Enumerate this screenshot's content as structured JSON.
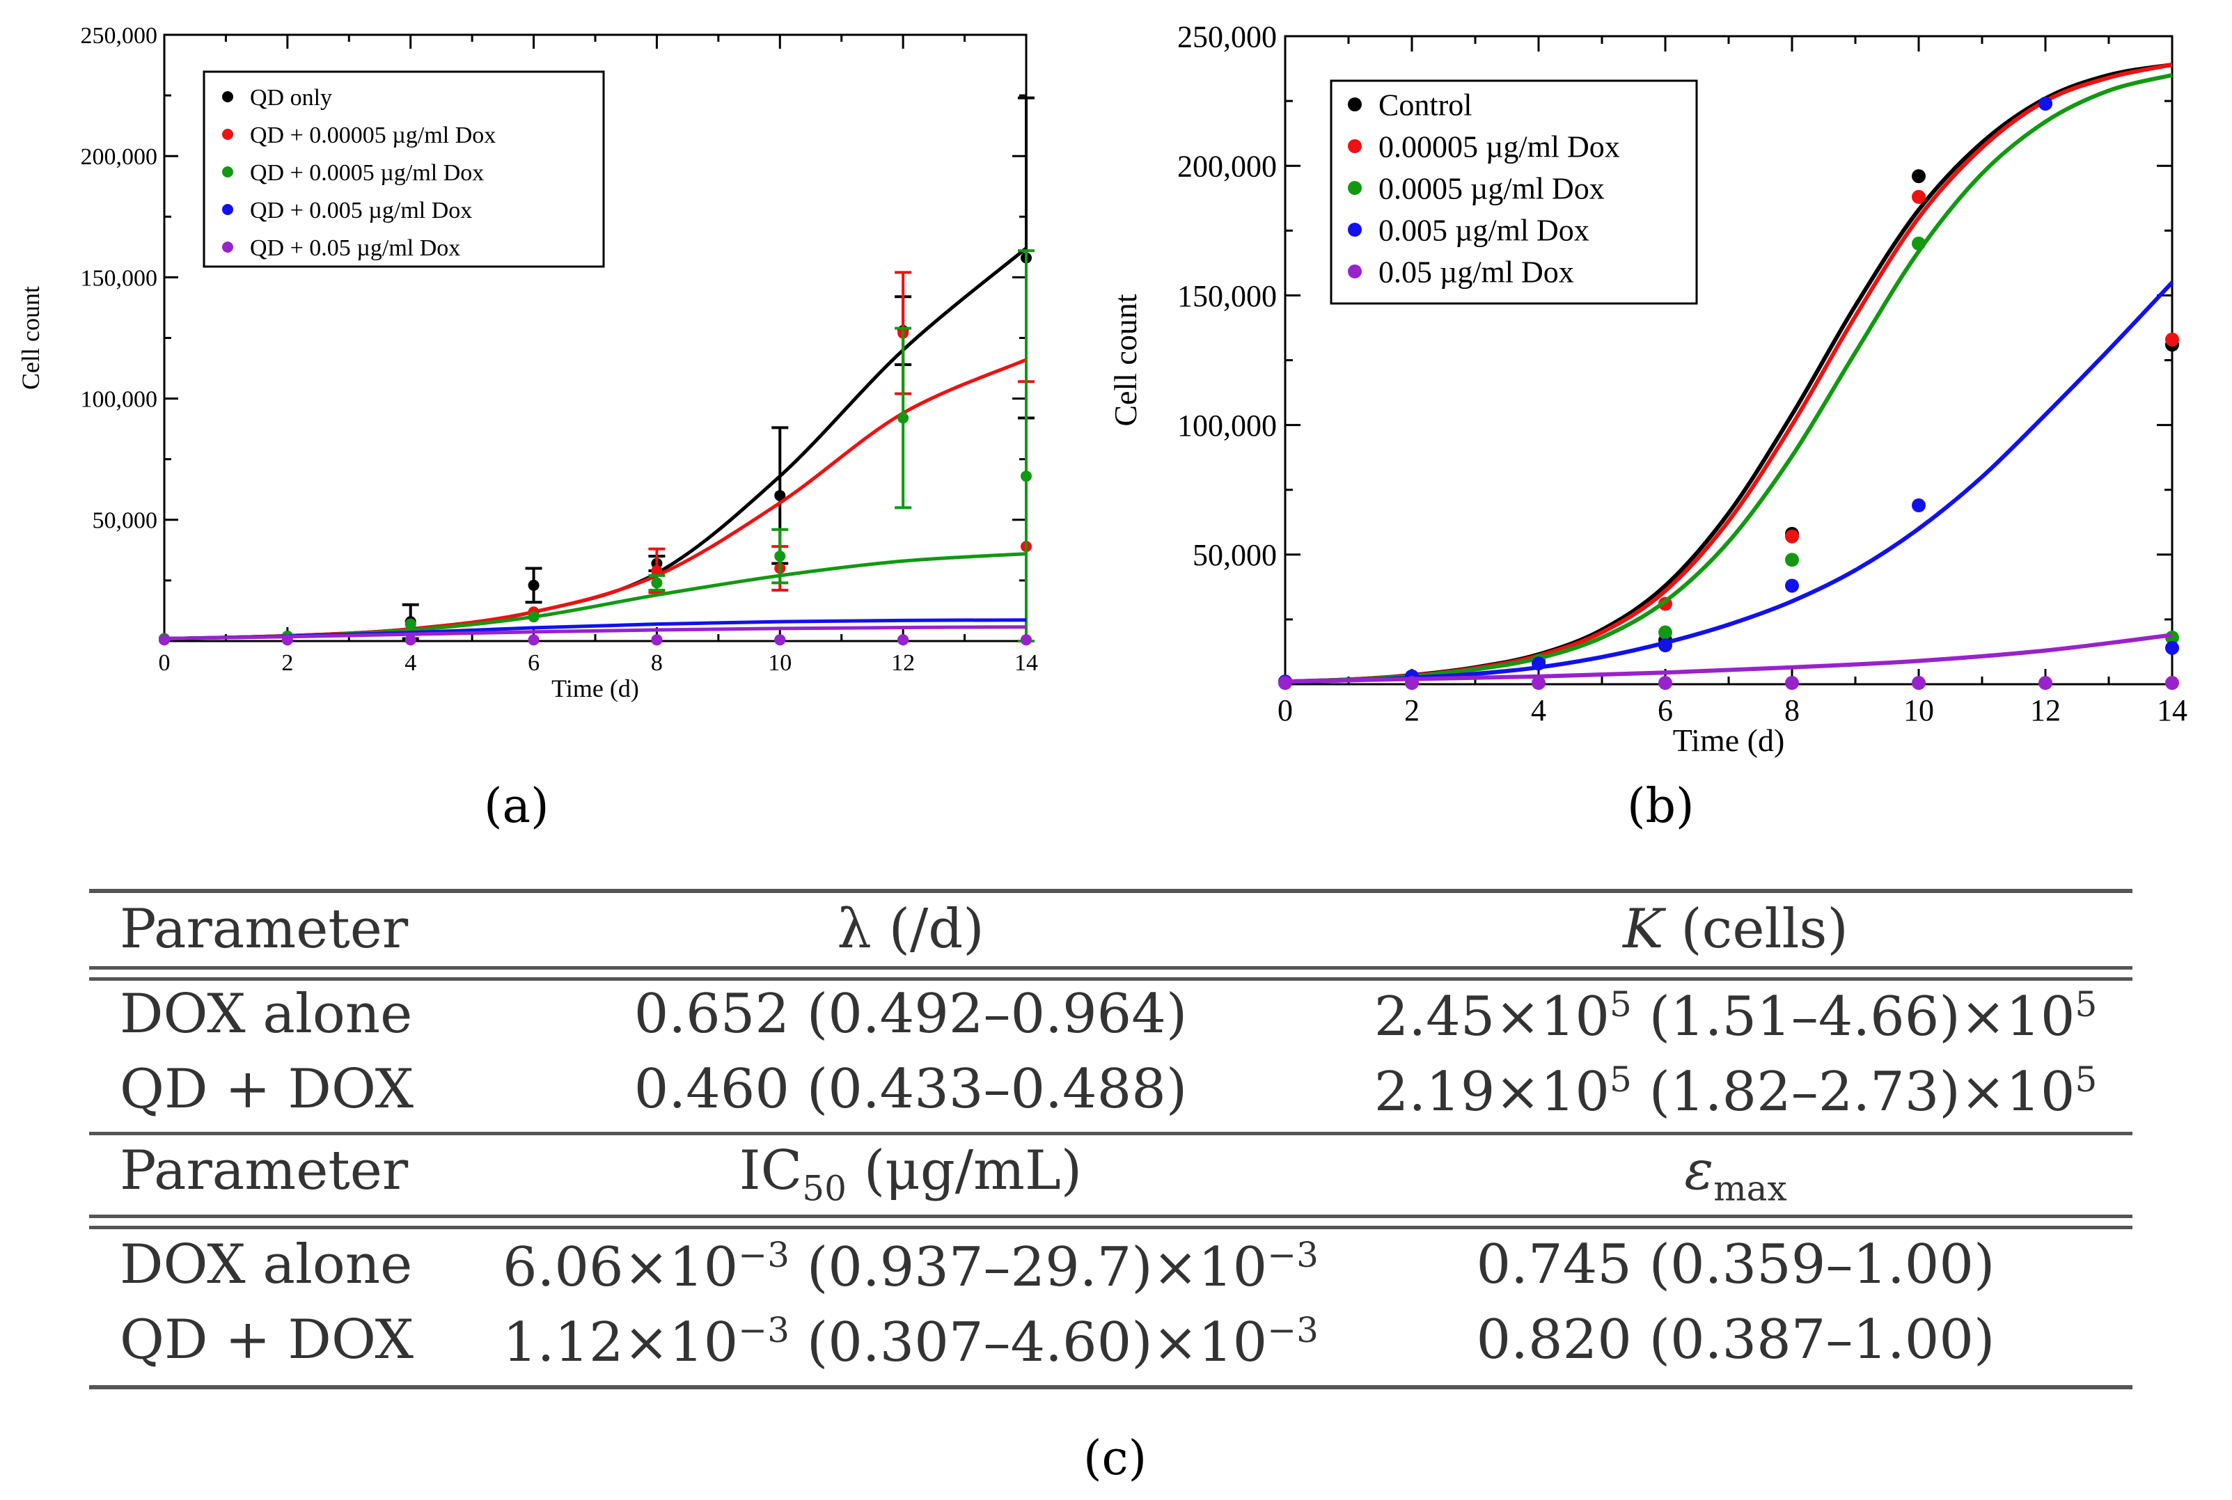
{
  "chart_data": [
    {
      "type": "scatter",
      "panel": "a",
      "xlabel": "Time (d)",
      "ylabel": "Cell count",
      "xlim": [
        0,
        14
      ],
      "ylim": [
        0,
        250000
      ],
      "xticks": [
        "0",
        "2",
        "4",
        "6",
        "8",
        "10",
        "12",
        "14"
      ],
      "yticks": [
        "50,000",
        "100,000",
        "150,000",
        "200,000",
        "250,000"
      ],
      "legend_position": "top-left",
      "series": [
        {
          "name": "QD only",
          "color": "#000000",
          "points": [
            [
              0,
              1000
            ],
            [
              2,
              2000
            ],
            [
              4,
              8000
            ],
            [
              6,
              23000
            ],
            [
              8,
              32000
            ],
            [
              10,
              60000
            ],
            [
              12,
              128000
            ],
            [
              14,
              158000
            ]
          ],
          "errors": [
            [
              4,
              7000
            ],
            [
              6,
              7000
            ],
            [
              8,
              3000
            ],
            [
              10,
              28000
            ],
            [
              12,
              14000
            ],
            [
              14,
              66000
            ]
          ],
          "fit": [
            [
              0,
              1000
            ],
            [
              2,
              2200
            ],
            [
              4,
              5000
            ],
            [
              6,
              12000
            ],
            [
              8,
              28000
            ],
            [
              10,
              68000
            ],
            [
              12,
              120000
            ],
            [
              14,
              162000
            ]
          ]
        },
        {
          "name": "QD + 0.00005 µg/ml Dox",
          "color": "#ee1111",
          "points": [
            [
              0,
              1000
            ],
            [
              2,
              2000
            ],
            [
              4,
              7000
            ],
            [
              6,
              12000
            ],
            [
              8,
              29000
            ],
            [
              10,
              30000
            ],
            [
              12,
              127000
            ],
            [
              14,
              39000
            ]
          ],
          "errors": [
            [
              8,
              9000
            ],
            [
              10,
              9000
            ],
            [
              12,
              25000
            ],
            [
              14,
              68000
            ]
          ],
          "fit": [
            [
              0,
              1000
            ],
            [
              2,
              2200
            ],
            [
              4,
              5000
            ],
            [
              6,
              12000
            ],
            [
              8,
              27000
            ],
            [
              10,
              57000
            ],
            [
              12,
              94000
            ],
            [
              14,
              116000
            ]
          ]
        },
        {
          "name": "QD + 0.0005 µg/ml Dox",
          "color": "#119911",
          "points": [
            [
              0,
              1000
            ],
            [
              2,
              2000
            ],
            [
              4,
              7000
            ],
            [
              6,
              10000
            ],
            [
              8,
              24000
            ],
            [
              10,
              35000
            ],
            [
              12,
              92000
            ],
            [
              14,
              68000
            ]
          ],
          "errors": [
            [
              8,
              3000
            ],
            [
              10,
              11000
            ],
            [
              12,
              37000
            ],
            [
              14,
              93000
            ]
          ],
          "fit": [
            [
              0,
              1000
            ],
            [
              2,
              2000
            ],
            [
              4,
              4500
            ],
            [
              6,
              10000
            ],
            [
              8,
              19000
            ],
            [
              10,
              27000
            ],
            [
              12,
              33000
            ],
            [
              14,
              36000
            ]
          ]
        },
        {
          "name": "QD + 0.005 µg/ml Dox",
          "color": "#1111ee",
          "points": [
            [
              0,
              500
            ],
            [
              2,
              500
            ],
            [
              4,
              500
            ],
            [
              6,
              500
            ],
            [
              8,
              500
            ],
            [
              10,
              500
            ],
            [
              12,
              500
            ],
            [
              14,
              500
            ]
          ],
          "errors": [],
          "fit": [
            [
              0,
              1000
            ],
            [
              2,
              2000
            ],
            [
              4,
              3500
            ],
            [
              6,
              5500
            ],
            [
              8,
              7000
            ],
            [
              10,
              8000
            ],
            [
              12,
              8500
            ],
            [
              14,
              8700
            ]
          ]
        },
        {
          "name": "QD + 0.05 µg/ml Dox",
          "color": "#9922cc",
          "points": [
            [
              0,
              500
            ],
            [
              2,
              500
            ],
            [
              4,
              500
            ],
            [
              6,
              500
            ],
            [
              8,
              500
            ],
            [
              10,
              500
            ],
            [
              12,
              500
            ],
            [
              14,
              500
            ]
          ],
          "errors": [],
          "fit": [
            [
              0,
              1000
            ],
            [
              2,
              1800
            ],
            [
              4,
              2800
            ],
            [
              6,
              3800
            ],
            [
              8,
              4600
            ],
            [
              10,
              5200
            ],
            [
              12,
              5600
            ],
            [
              14,
              5800
            ]
          ]
        }
      ]
    },
    {
      "type": "scatter",
      "panel": "b",
      "xlabel": "Time (d)",
      "ylabel": "Cell count",
      "xlim": [
        0,
        14
      ],
      "ylim": [
        0,
        250000
      ],
      "xticks": [
        "0",
        "2",
        "4",
        "6",
        "8",
        "10",
        "12",
        "14"
      ],
      "yticks": [
        "50,000",
        "100,000",
        "150,000",
        "200,000",
        "250,000"
      ],
      "legend_position": "top-left",
      "series": [
        {
          "name": "Control",
          "color": "#000000",
          "points": [
            [
              0,
              1000
            ],
            [
              2,
              3000
            ],
            [
              4,
              9000
            ],
            [
              6,
              17000
            ],
            [
              8,
              58000
            ],
            [
              10,
              196000
            ],
            [
              12,
              224000
            ],
            [
              14,
              131000
            ]
          ],
          "fit": [
            [
              0,
              1000
            ],
            [
              1,
              1800
            ],
            [
              2,
              3500
            ],
            [
              3,
              6500
            ],
            [
              4,
              11500
            ],
            [
              5,
              21000
            ],
            [
              6,
              38000
            ],
            [
              7,
              66000
            ],
            [
              8,
              104000
            ],
            [
              9,
              146000
            ],
            [
              10,
              183000
            ],
            [
              11,
              209000
            ],
            [
              12,
              226000
            ],
            [
              13,
              235000
            ],
            [
              14,
              239000
            ]
          ]
        },
        {
          "name": "0.00005 µg/ml Dox",
          "color": "#ee1111",
          "points": [
            [
              0,
              1000
            ],
            [
              2,
              3000
            ],
            [
              4,
              9000
            ],
            [
              6,
              31000
            ],
            [
              8,
              57000
            ],
            [
              10,
              188000
            ],
            [
              12,
              224000
            ],
            [
              14,
              133000
            ]
          ],
          "fit": [
            [
              0,
              1000
            ],
            [
              1,
              1800
            ],
            [
              2,
              3300
            ],
            [
              3,
              6200
            ],
            [
              4,
              11000
            ],
            [
              5,
              20000
            ],
            [
              6,
              36000
            ],
            [
              7,
              63000
            ],
            [
              8,
              100000
            ],
            [
              9,
              142000
            ],
            [
              10,
              180000
            ],
            [
              11,
              207000
            ],
            [
              12,
              225000
            ],
            [
              13,
              234000
            ],
            [
              14,
              239000
            ]
          ]
        },
        {
          "name": "0.0005 µg/ml Dox",
          "color": "#119911",
          "points": [
            [
              0,
              1000
            ],
            [
              2,
              3000
            ],
            [
              4,
              9000
            ],
            [
              6,
              20000
            ],
            [
              8,
              48000
            ],
            [
              10,
              170000
            ],
            [
              12,
              224000
            ],
            [
              14,
              18000
            ]
          ],
          "fit": [
            [
              0,
              1000
            ],
            [
              1,
              1700
            ],
            [
              2,
              3100
            ],
            [
              3,
              5700
            ],
            [
              4,
              10000
            ],
            [
              5,
              18000
            ],
            [
              6,
              32000
            ],
            [
              7,
              55000
            ],
            [
              8,
              88000
            ],
            [
              9,
              128000
            ],
            [
              10,
              167000
            ],
            [
              11,
              197000
            ],
            [
              12,
              217000
            ],
            [
              13,
              229000
            ],
            [
              14,
              235000
            ]
          ]
        },
        {
          "name": "0.005 µg/ml Dox",
          "color": "#1111ee",
          "points": [
            [
              0,
              1000
            ],
            [
              2,
              3000
            ],
            [
              4,
              8000
            ],
            [
              6,
              15000
            ],
            [
              8,
              38000
            ],
            [
              10,
              69000
            ],
            [
              12,
              224000
            ],
            [
              14,
              14000
            ]
          ],
          "fit": [
            [
              0,
              1000
            ],
            [
              1,
              1500
            ],
            [
              2,
              2500
            ],
            [
              3,
              4000
            ],
            [
              4,
              6500
            ],
            [
              5,
              10500
            ],
            [
              6,
              16000
            ],
            [
              7,
              23000
            ],
            [
              8,
              32000
            ],
            [
              9,
              44000
            ],
            [
              10,
              60000
            ],
            [
              11,
              80000
            ],
            [
              12,
              104000
            ],
            [
              13,
              129000
            ],
            [
              14,
              155000
            ]
          ]
        },
        {
          "name": "0.05 µg/ml Dox",
          "color": "#9922cc",
          "points": [
            [
              0,
              500
            ],
            [
              2,
              500
            ],
            [
              4,
              500
            ],
            [
              6,
              500
            ],
            [
              8,
              500
            ],
            [
              10,
              500
            ],
            [
              12,
              500
            ],
            [
              14,
              500
            ]
          ],
          "fit": [
            [
              0,
              1000
            ],
            [
              2,
              2000
            ],
            [
              4,
              3000
            ],
            [
              6,
              4500
            ],
            [
              8,
              6500
            ],
            [
              10,
              9000
            ],
            [
              12,
              13000
            ],
            [
              14,
              19000
            ]
          ]
        }
      ]
    }
  ],
  "panel_labels": {
    "a": "(a)",
    "b": "(b)",
    "c": "(c)"
  },
  "table": {
    "header1": {
      "param": "Parameter",
      "lambda": "λ (/d)",
      "K_sym": "K",
      "K_unit": "(cells)"
    },
    "rows1": [
      {
        "label": "DOX alone",
        "lambda": "0.652 (0.492–0.964)",
        "K_a": "2.45×10",
        "K_b": "(1.51–4.66)×10",
        "K_exp": "5"
      },
      {
        "label": "QD + DOX",
        "lambda": "0.460 (0.433–0.488)",
        "K_a": "2.19×10",
        "K_b": "(1.82–2.73)×10",
        "K_exp": "5"
      }
    ],
    "header2": {
      "param": "Parameter",
      "ic_a": "IC",
      "ic_sub": "50",
      "ic_unit": "(μg/mL)",
      "eps": "ε",
      "eps_sub": "max"
    },
    "rows2": [
      {
        "label": "DOX alone",
        "ic_a": "6.06×10",
        "ic_b": "(0.937–29.7)×10",
        "ic_exp": "−3",
        "eps": "0.745 (0.359–1.00)"
      },
      {
        "label": "QD + DOX",
        "ic_a": "1.12×10",
        "ic_b": "(0.307–4.60)×10",
        "ic_exp": "−3",
        "eps": "0.820 (0.387–1.00)"
      }
    ]
  }
}
